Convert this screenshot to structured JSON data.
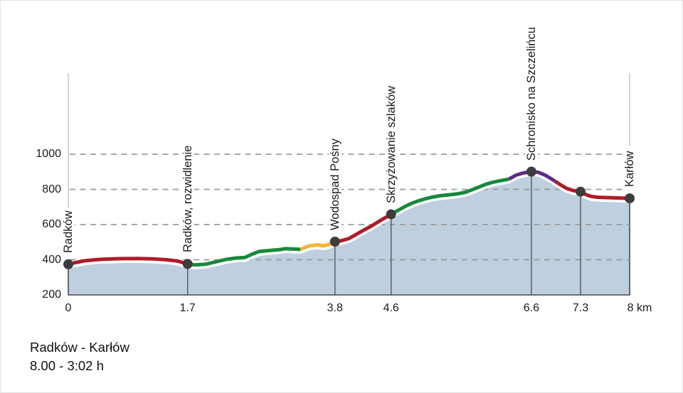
{
  "chart_data": {
    "type": "area",
    "title": "Radków - Karłów",
    "duration": "8.00 - 3:02 h",
    "ylim": [
      200,
      1000
    ],
    "xlim": [
      0,
      8
    ],
    "grid": "dashed-horizontal",
    "y_ticks": [
      1000,
      800,
      600,
      400,
      200
    ],
    "x_ticks": [
      {
        "km": 0,
        "label": "0"
      },
      {
        "km": 1.7,
        "label": "1.7"
      },
      {
        "km": 3.8,
        "label": "3.8"
      },
      {
        "km": 4.6,
        "label": "4.6"
      },
      {
        "km": 6.6,
        "label": "6.6"
      },
      {
        "km": 7.3,
        "label": "7.3"
      },
      {
        "km": 8,
        "label": "8 km"
      }
    ],
    "profile": [
      [
        0,
        374
      ],
      [
        0.1,
        384
      ],
      [
        0.25,
        395
      ],
      [
        0.45,
        402
      ],
      [
        0.7,
        406
      ],
      [
        1,
        407
      ],
      [
        1.2,
        405
      ],
      [
        1.4,
        400
      ],
      [
        1.55,
        393
      ],
      [
        1.7,
        376
      ],
      [
        1.8,
        371
      ],
      [
        1.95,
        374
      ],
      [
        2.1,
        388
      ],
      [
        2.25,
        402
      ],
      [
        2.4,
        410
      ],
      [
        2.52,
        413
      ],
      [
        2.62,
        432
      ],
      [
        2.72,
        447
      ],
      [
        2.85,
        452
      ],
      [
        3,
        457
      ],
      [
        3.1,
        463
      ],
      [
        3.2,
        461
      ],
      [
        3.31,
        459
      ],
      [
        3.42,
        478
      ],
      [
        3.55,
        485
      ],
      [
        3.64,
        479
      ],
      [
        3.73,
        489
      ],
      [
        3.8,
        503
      ],
      [
        3.9,
        509
      ],
      [
        4,
        521
      ],
      [
        4.1,
        543
      ],
      [
        4.2,
        566
      ],
      [
        4.32,
        592
      ],
      [
        4.45,
        624
      ],
      [
        4.55,
        646
      ],
      [
        4.6,
        658
      ],
      [
        4.7,
        681
      ],
      [
        4.8,
        703
      ],
      [
        4.9,
        722
      ],
      [
        5,
        736
      ],
      [
        5.1,
        748
      ],
      [
        5.2,
        757
      ],
      [
        5.3,
        764
      ],
      [
        5.4,
        768
      ],
      [
        5.5,
        772
      ],
      [
        5.58,
        777
      ],
      [
        5.66,
        784
      ],
      [
        5.75,
        797
      ],
      [
        5.85,
        813
      ],
      [
        5.95,
        829
      ],
      [
        6.05,
        841
      ],
      [
        6.15,
        849
      ],
      [
        6.28,
        858
      ],
      [
        6.38,
        881
      ],
      [
        6.48,
        893
      ],
      [
        6.6,
        901
      ],
      [
        6.7,
        897
      ],
      [
        6.8,
        880
      ],
      [
        6.9,
        856
      ],
      [
        7,
        830
      ],
      [
        7.1,
        806
      ],
      [
        7.2,
        793
      ],
      [
        7.3,
        787
      ],
      [
        7.38,
        770
      ],
      [
        7.45,
        760
      ],
      [
        7.55,
        755
      ],
      [
        7.7,
        753
      ],
      [
        7.85,
        751
      ],
      [
        8,
        749
      ]
    ],
    "segments": [
      {
        "from": 0,
        "to": 1.7,
        "trail": "red",
        "color": "#b01b28"
      },
      {
        "from": 1.7,
        "to": 3.31,
        "trail": "green",
        "color": "#17893c"
      },
      {
        "from": 3.31,
        "to": 3.8,
        "trail": "yellow",
        "color": "#f7b234"
      },
      {
        "from": 3.8,
        "to": 4.6,
        "trail": "red",
        "color": "#b01b28"
      },
      {
        "from": 4.6,
        "to": 6.28,
        "trail": "green",
        "color": "#17893c"
      },
      {
        "from": 6.28,
        "to": 6.94,
        "trail": "purple",
        "color": "#5e2c85"
      },
      {
        "from": 6.94,
        "to": 8,
        "trail": "red",
        "color": "#b01b28"
      }
    ],
    "waypoints": [
      {
        "name": "Radków",
        "km": 0,
        "elevation_m": 374
      },
      {
        "name": "Radków, rozwidlenie",
        "km": 1.7,
        "elevation_m": 376
      },
      {
        "name": "Wodospad Pośny",
        "km": 3.8,
        "elevation_m": 503
      },
      {
        "name": "Skrzyżowanie szlaków",
        "km": 4.6,
        "elevation_m": 658
      },
      {
        "name": "Schronisko na Szczelińcu",
        "km": 6.6,
        "elevation_m": 901
      },
      {
        "name": "",
        "km": 7.3,
        "elevation_m": 787
      },
      {
        "name": "Karłów",
        "km": 8,
        "elevation_m": 749
      }
    ],
    "colors": {
      "fill": "#becfe0",
      "area_stroke": "#4a4a4a",
      "gridline": "#9b9b9b",
      "dot": "#3c3c3c",
      "waypoint_line": "#4d4d4d",
      "top_line": "#bdbdbd",
      "gap_stroke": "#ffffff"
    }
  }
}
